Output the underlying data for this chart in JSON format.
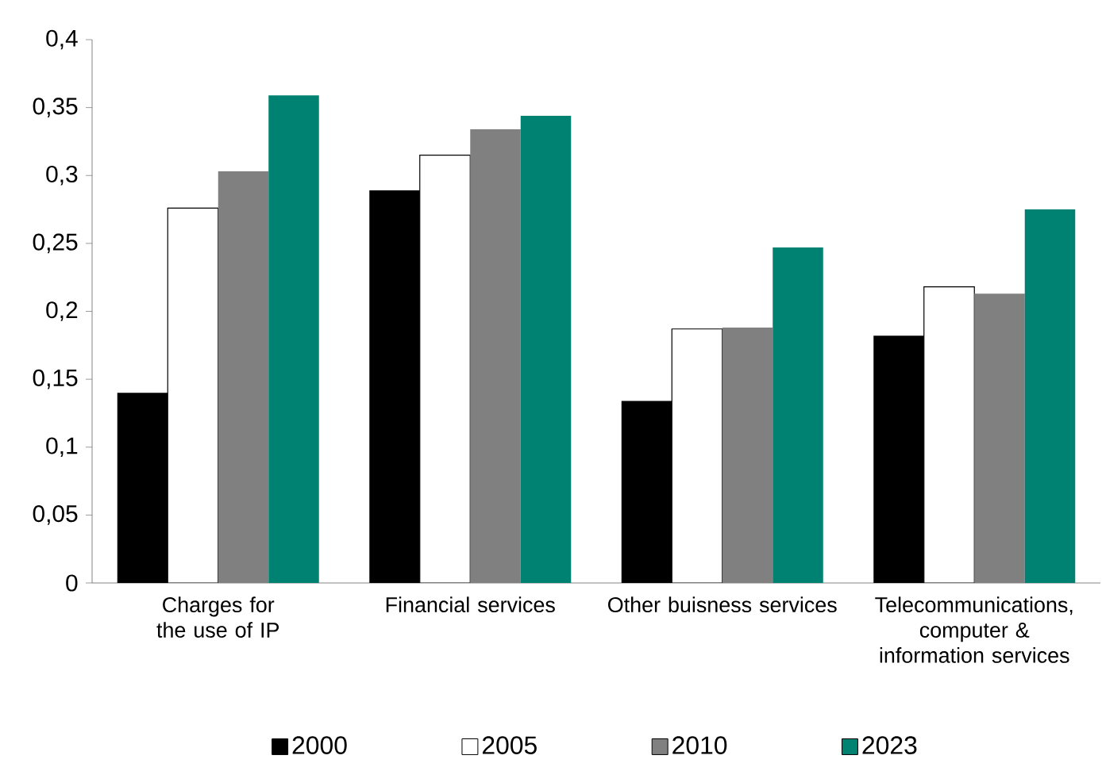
{
  "chart_data": {
    "type": "bar",
    "categories": [
      "Charges for the use of IP",
      "Financial services",
      "Other buisness services",
      "Telecommunications, computer & information services"
    ],
    "series": [
      {
        "name": "2000",
        "color": "#000000",
        "values": [
          0.14,
          0.289,
          0.134,
          0.182
        ]
      },
      {
        "name": "2005",
        "color": "#ffffff",
        "values": [
          0.276,
          0.315,
          0.187,
          0.218
        ]
      },
      {
        "name": "2010",
        "color": "#808080",
        "values": [
          0.303,
          0.334,
          0.188,
          0.213
        ]
      },
      {
        "name": "2023",
        "color": "#008272",
        "values": [
          0.359,
          0.344,
          0.247,
          0.275
        ]
      }
    ],
    "ylim": [
      0,
      0.4
    ],
    "yticks": [
      0,
      {
        "value": 0.05,
        "label": "0,05"
      },
      {
        "value": 0.1,
        "label": "0,1"
      },
      {
        "value": 0.15,
        "label": "0,15"
      },
      {
        "value": 0.2,
        "label": "0,2"
      },
      {
        "value": 0.25,
        "label": "0,25"
      },
      {
        "value": 0.3,
        "label": "0,3"
      },
      {
        "value": 0.35,
        "label": "0,35"
      },
      {
        "value": 0.4,
        "label": "0,4"
      }
    ],
    "grid": false,
    "legend": "bottom"
  }
}
